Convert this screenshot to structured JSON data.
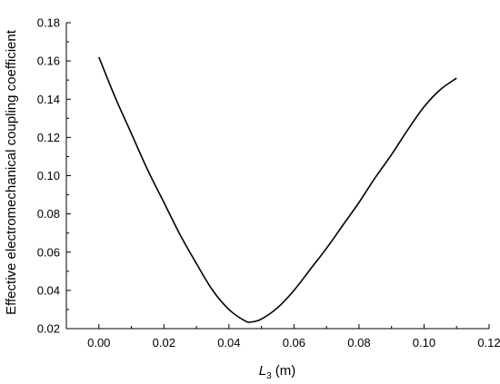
{
  "chart_data": {
    "type": "line",
    "title": "",
    "xlabel_main": "L",
    "xlabel_sub": "3",
    "xlabel_unit": " (m)",
    "ylabel": "Effective electromechanical coupling coefficient",
    "xlim": [
      -0.01,
      0.12
    ],
    "ylim": [
      0.02,
      0.18
    ],
    "x_ticks": [
      0.0,
      0.02,
      0.04,
      0.06,
      0.08,
      0.1,
      0.12
    ],
    "x_tick_labels": [
      "0.00",
      "0.02",
      "0.04",
      "0.06",
      "0.08",
      "0.10",
      "0.12"
    ],
    "y_ticks": [
      0.02,
      0.04,
      0.06,
      0.08,
      0.1,
      0.12,
      0.14,
      0.16,
      0.18
    ],
    "y_tick_labels": [
      "0.02",
      "0.04",
      "0.06",
      "0.08",
      "0.10",
      "0.12",
      "0.14",
      "0.16",
      "0.18"
    ],
    "grid": false,
    "series": [
      {
        "x": [
          0.0,
          0.005,
          0.01,
          0.015,
          0.02,
          0.025,
          0.03,
          0.035,
          0.04,
          0.045,
          0.047,
          0.05,
          0.055,
          0.06,
          0.065,
          0.07,
          0.075,
          0.08,
          0.085,
          0.09,
          0.095,
          0.1,
          0.105,
          0.11
        ],
        "y": [
          0.162,
          0.141,
          0.122,
          0.103,
          0.086,
          0.069,
          0.054,
          0.04,
          0.03,
          0.024,
          0.0235,
          0.025,
          0.031,
          0.04,
          0.051,
          0.062,
          0.074,
          0.086,
          0.099,
          0.111,
          0.124,
          0.136,
          0.145,
          0.151
        ]
      }
    ]
  }
}
